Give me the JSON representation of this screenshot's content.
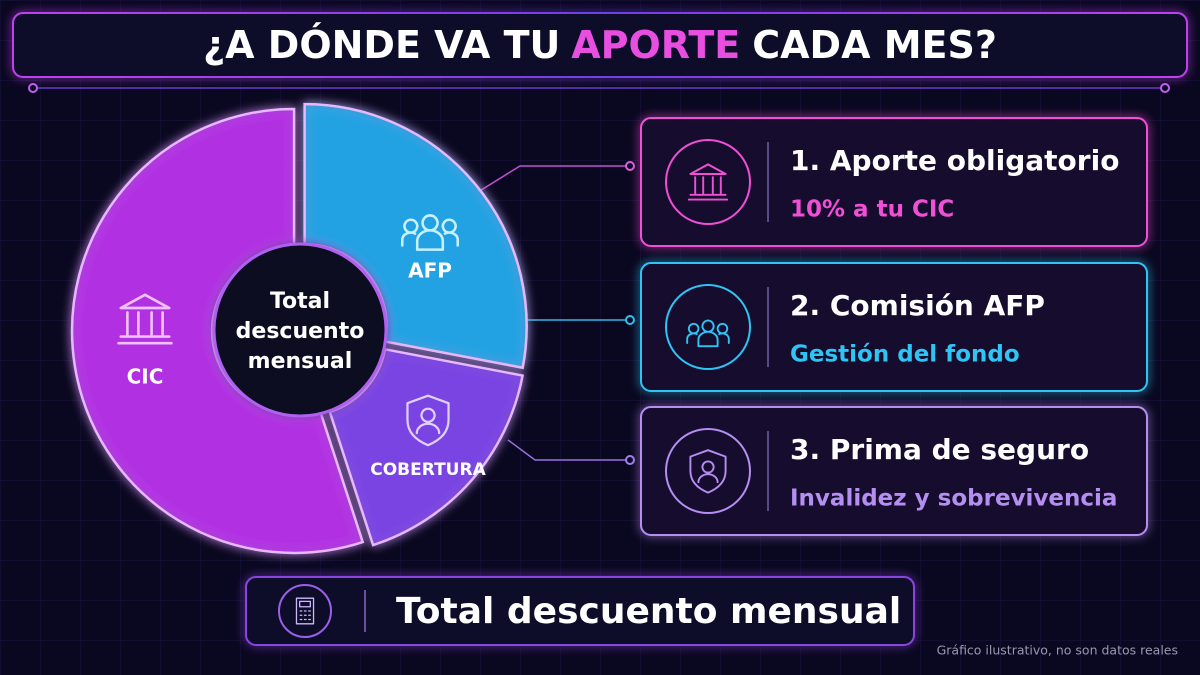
{
  "header": {
    "title_parts": [
      "¿A DÓNDE VA TU",
      "APORTE",
      "CADA MES?"
    ]
  },
  "chart_data": {
    "type": "pie",
    "categories": [
      "AFP",
      "COBERTURA",
      "CIC"
    ],
    "values": [
      28,
      17,
      55
    ],
    "colors": [
      "#22a6e6",
      "#7d45e6",
      "#b533e6"
    ],
    "center_label": [
      "Total",
      "descuento",
      "mensual"
    ]
  },
  "cards": [
    {
      "title": "1. Aporte obligatorio",
      "subtitle": "10% a tu CIC",
      "color": "#f04fd6"
    },
    {
      "title": "2. Comisión AFP",
      "subtitle": "Gestión del fondo",
      "color": "#2ec4f4"
    },
    {
      "title": "3. Prima de seguro",
      "subtitle": "Invalidez y sobrevivencia",
      "color": "#b58ef2"
    }
  ],
  "footer": {
    "label": "Total descuento mensual"
  },
  "note": "Gráfico ilustrativo, no son datos reales"
}
